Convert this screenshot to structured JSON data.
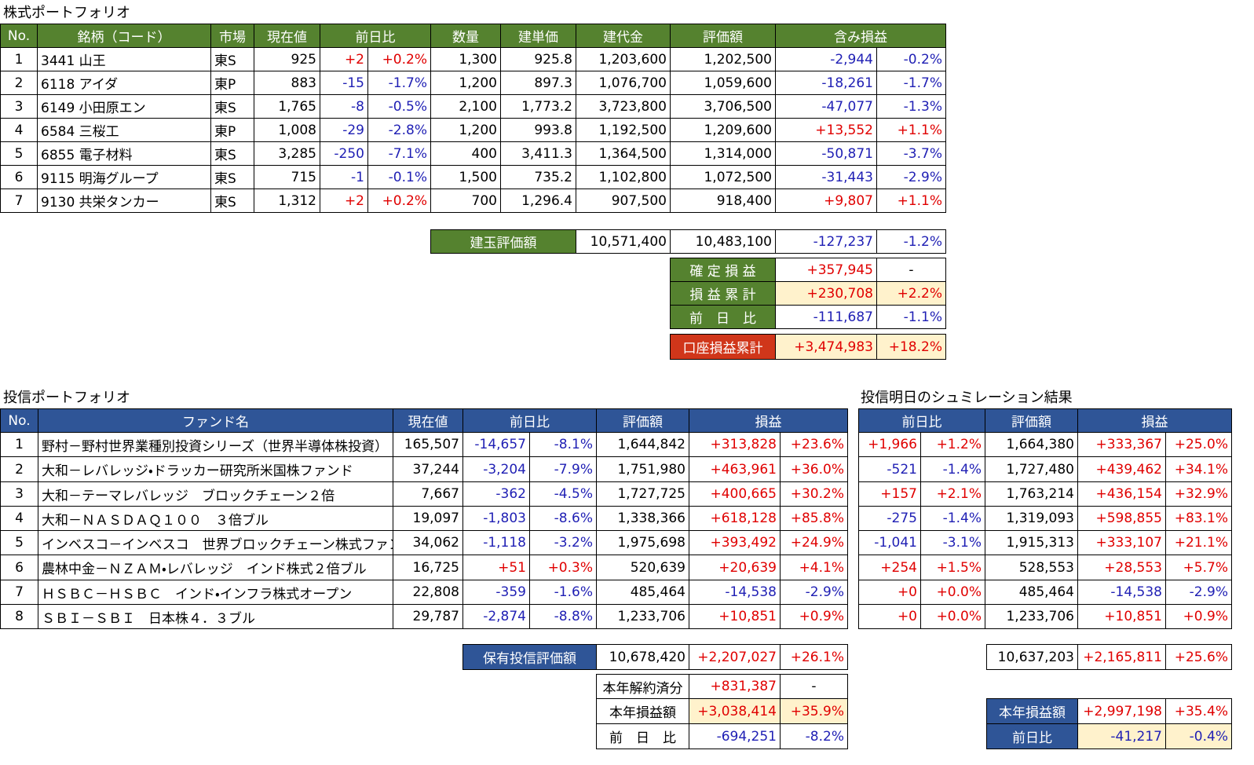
{
  "stock": {
    "title": "株式ポートフォリオ",
    "header": [
      "No.",
      "銘柄（コード）",
      "市場",
      "現在値",
      "前日比",
      "数量",
      "建単価",
      "建代金",
      "評価額",
      "含み損益"
    ],
    "rows": [
      [
        "1",
        "3441 山王",
        "東S",
        "925",
        "+2",
        "+0.2%",
        "1,300",
        "925.8",
        "1,203,600",
        "1,202,500",
        "-2,944",
        "-0.2%"
      ],
      [
        "2",
        "6118 アイダ",
        "東P",
        "883",
        "-15",
        "-1.7%",
        "1,200",
        "897.3",
        "1,076,700",
        "1,059,600",
        "-18,261",
        "-1.7%"
      ],
      [
        "3",
        "6149 小田原エン",
        "東S",
        "1,765",
        "-8",
        "-0.5%",
        "2,100",
        "1,773.2",
        "3,723,800",
        "3,706,500",
        "-47,077",
        "-1.3%"
      ],
      [
        "4",
        "6584 三桜工",
        "東P",
        "1,008",
        "-29",
        "-2.8%",
        "1,200",
        "993.8",
        "1,192,500",
        "1,209,600",
        "+13,552",
        "+1.1%"
      ],
      [
        "5",
        "6855 電子材料",
        "東S",
        "3,285",
        "-250",
        "-7.1%",
        "400",
        "3,411.3",
        "1,364,500",
        "1,314,000",
        "-50,871",
        "-3.7%"
      ],
      [
        "6",
        "9115 明海グループ",
        "東S",
        "715",
        "-1",
        "-0.1%",
        "1,500",
        "735.2",
        "1,102,800",
        "1,072,500",
        "-31,443",
        "-2.9%"
      ],
      [
        "7",
        "9130 共栄タンカー",
        "東S",
        "1,312",
        "+2",
        "+0.2%",
        "700",
        "1,296.4",
        "907,500",
        "918,400",
        "+9,807",
        "+1.1%"
      ]
    ],
    "total": {
      "label": "建玉評価額",
      "values": [
        "10,571,400",
        "10,483,100",
        "-127,237",
        "-1.2%"
      ]
    },
    "realized": {
      "label": "確 定 損 益",
      "values": [
        "+357,945",
        "-"
      ]
    },
    "cumulative": {
      "label": "損 益 累 計",
      "values": [
        "+230,708",
        "+2.2%"
      ]
    },
    "day_change": {
      "label": "前　日　比",
      "values": [
        "-111,687",
        "-1.1%"
      ]
    },
    "account": {
      "label": "口座損益累計",
      "values": [
        "+3,474,983",
        "+18.2%"
      ]
    }
  },
  "fund": {
    "title": "投信ポートフォリオ",
    "header": [
      "No.",
      "ファンド名",
      "現在値",
      "前日比",
      "評価額",
      "損益"
    ],
    "rows": [
      [
        "1",
        "野村－野村世界業種別投資シリーズ（世界半導体株投資）",
        "165,507",
        "-14,657",
        "-8.1%",
        "1,644,842",
        "+313,828",
        "+23.6%"
      ],
      [
        "2",
        "大和－レバレッジ・ドラッカー研究所米国株ファンド",
        "37,244",
        "-3,204",
        "-7.9%",
        "1,751,980",
        "+463,961",
        "+36.0%"
      ],
      [
        "3",
        "大和－テーマレバレッジ　ブロックチェーン２倍",
        "7,667",
        "-362",
        "-4.5%",
        "1,727,725",
        "+400,665",
        "+30.2%"
      ],
      [
        "4",
        "大和－ＮＡＳＤＡＱ１００　３倍ブル",
        "19,097",
        "-1,803",
        "-8.6%",
        "1,338,366",
        "+618,128",
        "+85.8%"
      ],
      [
        "5",
        "インベスコ－インベスコ　世界ブロックチェーン株式ファン",
        "34,062",
        "-1,118",
        "-3.2%",
        "1,975,698",
        "+393,492",
        "+24.9%"
      ],
      [
        "6",
        "農林中金－ＮＺＡＭ・レバレッジ　インド株式２倍ブル",
        "16,725",
        "+51",
        "+0.3%",
        "520,639",
        "+20,639",
        "+4.1%"
      ],
      [
        "7",
        "ＨＳＢＣ－ＨＳＢＣ　インド・インフラ株式オープン",
        "22,808",
        "-359",
        "-1.6%",
        "485,464",
        "-14,538",
        "-2.9%"
      ],
      [
        "8",
        "ＳＢＩ－ＳＢＩ　日本株４．３ブル",
        "29,787",
        "-2,874",
        "-8.8%",
        "1,233,706",
        "+10,851",
        "+0.9%"
      ]
    ],
    "total": {
      "label": "保有投信評価額",
      "values": [
        "10,678,420",
        "+2,207,027",
        "+26.1%"
      ]
    },
    "cancelled": {
      "label": "本年解約済分",
      "values": [
        "+831,387",
        "-"
      ]
    },
    "year_pl": {
      "label": "本年損益額",
      "values": [
        "+3,038,414",
        "+35.9%"
      ]
    },
    "day_change": {
      "label": "前　日　比",
      "values": [
        "-694,251",
        "-8.2%"
      ]
    }
  },
  "simulation": {
    "title": "投信明日のシュミレーション結果",
    "header": [
      "前日比",
      "評価額",
      "損益"
    ],
    "rows": [
      [
        "+1,966",
        "+1.2%",
        "1,664,380",
        "+333,367",
        "+25.0%"
      ],
      [
        "-521",
        "-1.4%",
        "1,727,480",
        "+439,462",
        "+34.1%"
      ],
      [
        "+157",
        "+2.1%",
        "1,763,214",
        "+436,154",
        "+32.9%"
      ],
      [
        "-275",
        "-1.4%",
        "1,319,093",
        "+598,855",
        "+83.1%"
      ],
      [
        "-1,041",
        "-3.1%",
        "1,915,313",
        "+333,107",
        "+21.1%"
      ],
      [
        "+254",
        "+1.5%",
        "528,553",
        "+28,553",
        "+5.7%"
      ],
      [
        "+0",
        "+0.0%",
        "485,464",
        "-14,538",
        "-2.9%"
      ],
      [
        "+0",
        "+0.0%",
        "1,233,706",
        "+10,851",
        "+0.9%"
      ]
    ],
    "total": {
      "values": [
        "10,637,203",
        "+2,165,811",
        "+25.6%"
      ]
    },
    "year_pl": {
      "label": "本年損益額",
      "values": [
        "+2,997,198",
        "+35.4%"
      ]
    },
    "day_change": {
      "label": "前日比",
      "values": [
        "-41,217",
        "-0.4%"
      ]
    }
  }
}
